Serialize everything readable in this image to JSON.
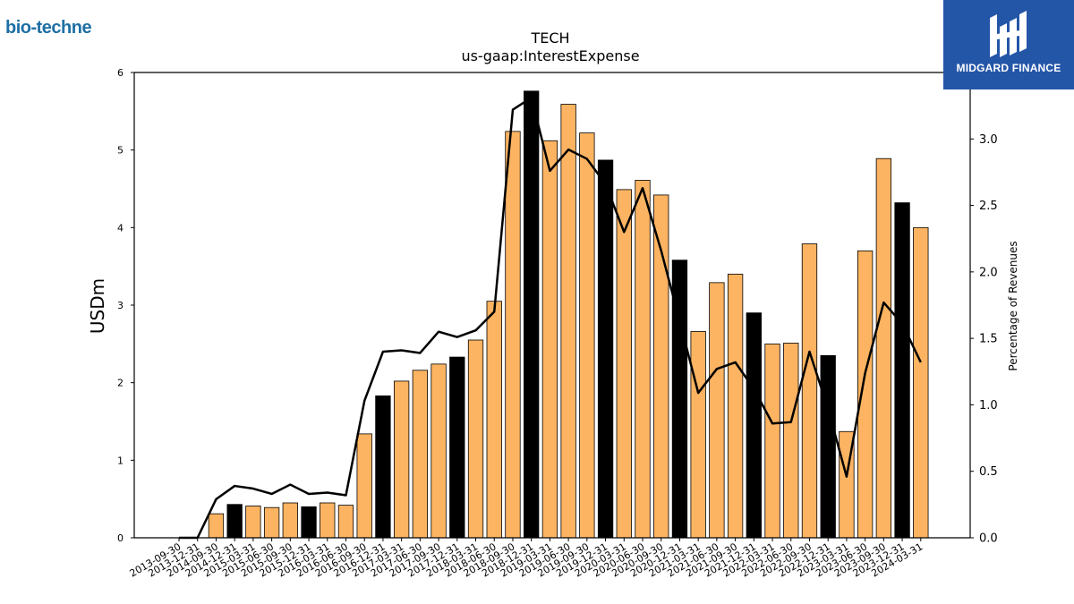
{
  "logos": {
    "left_text": "bio-techne",
    "right_text": "MIDGARD FINANCE"
  },
  "chart_data": {
    "type": "bar",
    "title": "TECH",
    "subtitle": "us-gaap:InterestExpense",
    "ylabel": "USDm",
    "ylabel_right": "Percentage of Revenues",
    "ylim": [
      0,
      6
    ],
    "ylim_right": [
      0.0,
      3.5
    ],
    "yticks": [
      "0",
      "1",
      "2",
      "3",
      "4",
      "5",
      "6"
    ],
    "yticks_right": [
      "0.0",
      "0.5",
      "1.0",
      "1.5",
      "2.0",
      "2.5",
      "3.0"
    ],
    "grid": false,
    "colors": {
      "bar": "#fdb462",
      "bar_highlight": "#000000",
      "line": "#000000"
    },
    "categories": [
      "2013-09-30",
      "2013-12-31",
      "2014-09-30",
      "2014-12-31",
      "2015-03-31",
      "2015-06-30",
      "2015-09-30",
      "2015-12-31",
      "2016-03-31",
      "2016-06-30",
      "2016-09-30",
      "2016-12-31",
      "2017-03-31",
      "2017-06-30",
      "2017-09-30",
      "2017-12-31",
      "2018-03-31",
      "2018-06-30",
      "2018-09-30",
      "2018-12-31",
      "2019-03-31",
      "2019-06-30",
      "2019-09-30",
      "2019-12-31",
      "2020-03-31",
      "2020-06-30",
      "2020-09-30",
      "2020-12-31",
      "2021-03-31",
      "2021-06-30",
      "2021-09-30",
      "2021-12-31",
      "2022-03-31",
      "2022-06-30",
      "2022-09-30",
      "2022-12-31",
      "2023-03-31",
      "2023-06-30",
      "2023-09-30",
      "2023-12-31",
      "2024-03-31"
    ],
    "series": [
      {
        "type": "bar",
        "axis": "left",
        "values": [
          0.0,
          0.0,
          0.31,
          0.43,
          0.41,
          0.39,
          0.45,
          0.4,
          0.45,
          0.42,
          1.34,
          1.83,
          2.02,
          2.16,
          2.24,
          2.33,
          2.55,
          3.05,
          5.24,
          5.76,
          5.12,
          5.59,
          5.22,
          4.87,
          4.49,
          4.61,
          4.42,
          3.58,
          2.66,
          3.29,
          3.4,
          2.9,
          2.5,
          2.51,
          3.79,
          2.35,
          1.37,
          3.7,
          4.89,
          4.32,
          4.0
        ],
        "highlight": [
          false,
          false,
          false,
          true,
          false,
          false,
          false,
          true,
          false,
          false,
          false,
          true,
          false,
          false,
          false,
          true,
          false,
          false,
          false,
          true,
          false,
          false,
          false,
          true,
          false,
          false,
          false,
          true,
          false,
          false,
          false,
          true,
          false,
          false,
          false,
          true,
          false,
          false,
          false,
          true,
          false
        ]
      },
      {
        "type": "line",
        "axis": "right",
        "values": [
          0.0,
          0.0,
          0.29,
          0.39,
          0.37,
          0.33,
          0.4,
          0.33,
          0.34,
          0.32,
          1.03,
          1.4,
          1.41,
          1.39,
          1.55,
          1.51,
          1.56,
          1.7,
          3.22,
          3.31,
          2.76,
          2.92,
          2.85,
          2.66,
          2.3,
          2.63,
          2.16,
          1.63,
          1.09,
          1.27,
          1.32,
          1.12,
          0.86,
          0.87,
          1.4,
          0.97,
          0.46,
          1.24,
          1.77,
          1.61,
          1.32
        ]
      }
    ]
  }
}
